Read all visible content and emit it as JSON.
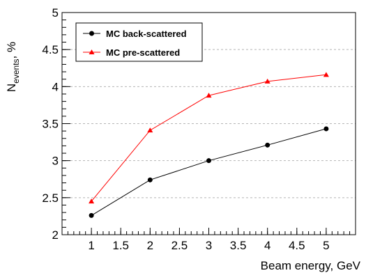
{
  "chart_data": {
    "type": "line",
    "xlabel": "Beam energy, GeV",
    "ylabel": {
      "main": "N",
      "sub": "events",
      "tail": ", %"
    },
    "xlim": [
      0.5,
      5.5
    ],
    "ylim": [
      2,
      5
    ],
    "x_ticks": [
      "1",
      "1.5",
      "2",
      "2.5",
      "3",
      "3.5",
      "4",
      "4.5",
      "5"
    ],
    "y_ticks": [
      "2",
      "2.5",
      "3",
      "3.5",
      "4",
      "4.5",
      "5"
    ],
    "grid": "horizontal dashed",
    "legend_position": "top-left",
    "x": [
      1,
      2,
      3,
      4,
      5
    ],
    "series": [
      {
        "name": "MC back-scattered",
        "values": [
          2.26,
          2.74,
          3.0,
          3.21,
          3.43
        ],
        "color": "#000000",
        "marker": "circle"
      },
      {
        "name": "MC pre-scattered",
        "values": [
          2.45,
          3.41,
          3.88,
          4.07,
          4.16
        ],
        "color": "#ff0000",
        "marker": "triangle"
      }
    ]
  }
}
